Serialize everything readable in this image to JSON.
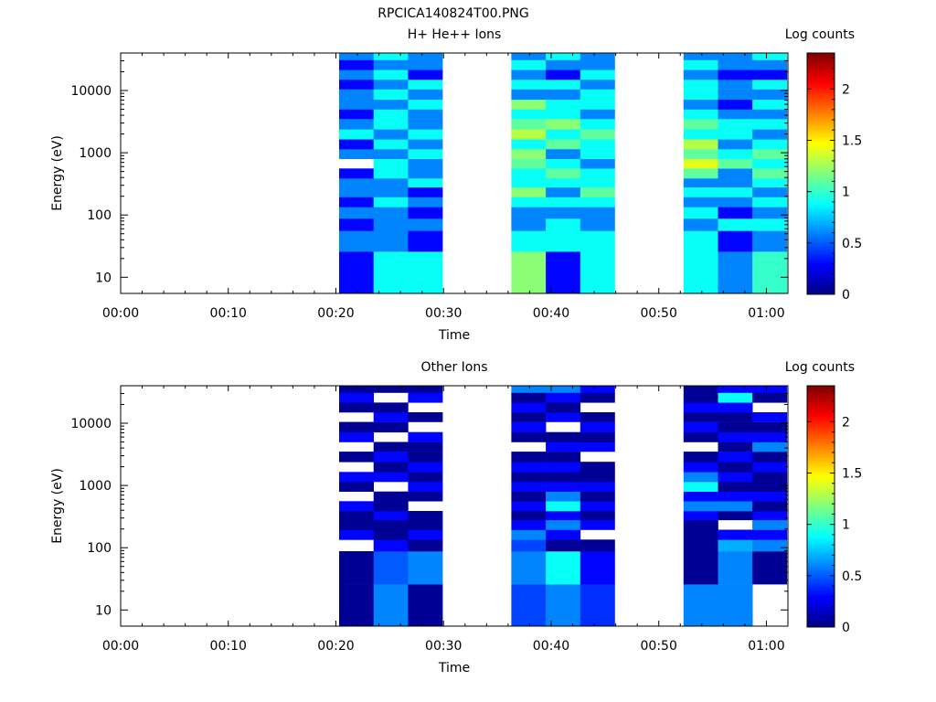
{
  "page_title": "RPCICA140824T00.PNG",
  "chart_data": [
    {
      "type": "heatmap",
      "title": "H+ He++ Ions",
      "xlabel": "Time",
      "ylabel": "Energy (eV)",
      "colorbar_label": "Log counts",
      "x_ticks": [
        "00:00",
        "00:10",
        "00:20",
        "00:30",
        "00:40",
        "00:50",
        "01:00"
      ],
      "x_range_minutes": [
        0,
        62
      ],
      "y_scale": "log",
      "y_range_eV": [
        5.5,
        40000
      ],
      "y_ticks": [
        "10",
        "100",
        "1000",
        "10000"
      ],
      "colorbar_ticks": [
        "0",
        "0.5",
        "1",
        "1.5",
        "2"
      ],
      "colorbar_range": [
        0,
        2.35
      ],
      "colormap": "jet",
      "time_bins_minutes": [
        [
          20.3,
          23.5
        ],
        [
          23.5,
          26.7
        ],
        [
          26.7,
          29.9
        ],
        [
          36.3,
          39.5
        ],
        [
          39.5,
          42.7
        ],
        [
          42.7,
          45.9
        ],
        [
          52.3,
          55.5
        ],
        [
          55.5,
          58.7
        ],
        [
          58.7,
          61.9
        ]
      ],
      "energy_bins_eV": [
        5.5,
        26,
        56,
        88,
        135,
        195,
        280,
        390,
        560,
        800,
        1150,
        1650,
        2400,
        3500,
        5000,
        7200,
        10500,
        15000,
        21500,
        31000,
        40000
      ],
      "log_counts": [
        [
          0.3,
          0.6,
          0.3,
          0.6,
          0.3,
          0.6,
          0.6,
          0.3,
          null,
          0.6,
          0.3,
          0.9,
          0.6,
          0.3,
          0.6,
          0.6,
          0.3,
          0.6,
          0.3,
          0.6
        ],
        [
          0.9,
          0.6,
          0.6,
          0.6,
          0.9,
          0.6,
          0.6,
          0.9,
          0.9,
          0.6,
          0.9,
          0.6,
          0.9,
          0.9,
          0.6,
          0.9,
          0.6,
          0.9,
          0.6,
          0.9
        ],
        [
          0.9,
          0.3,
          0.6,
          0.3,
          0.6,
          0.3,
          0.9,
          0.6,
          0.6,
          0.9,
          0.6,
          0.9,
          0.6,
          0.6,
          0.9,
          0.6,
          0.9,
          0.3,
          0.6,
          0.6
        ],
        [
          1.2,
          0.9,
          0.6,
          0.6,
          0.9,
          1.2,
          0.9,
          0.9,
          1.1,
          1.2,
          0.9,
          1.3,
          1.1,
          0.9,
          1.2,
          0.6,
          0.9,
          0.6,
          0.9,
          0.6
        ],
        [
          0.3,
          0.9,
          0.9,
          0.6,
          0.9,
          0.6,
          0.9,
          1.1,
          0.9,
          0.6,
          1.1,
          0.9,
          1.2,
          0.9,
          0.9,
          0.6,
          0.9,
          0.3,
          0.6,
          0.9
        ],
        [
          0.9,
          0.9,
          0.6,
          0.6,
          0.9,
          1.1,
          0.9,
          0.9,
          0.6,
          0.9,
          0.9,
          1.1,
          0.9,
          0.6,
          0.9,
          0.9,
          0.6,
          0.9,
          0.6,
          0.6
        ],
        [
          0.9,
          0.9,
          0.6,
          0.9,
          0.6,
          0.9,
          0.6,
          1.1,
          1.4,
          1.1,
          1.3,
          0.9,
          1.1,
          0.9,
          0.6,
          0.9,
          0.9,
          0.6,
          0.9,
          0.6
        ],
        [
          0.6,
          0.3,
          0.9,
          0.3,
          0.6,
          0.9,
          0.6,
          0.6,
          1.1,
          0.9,
          0.6,
          0.9,
          0.9,
          0.6,
          0.3,
          0.6,
          0.6,
          0.3,
          0.6,
          0.6
        ],
        [
          1.0,
          0.6,
          0.9,
          0.6,
          0.9,
          0.6,
          0.9,
          1.1,
          0.9,
          1.1,
          0.9,
          0.6,
          0.9,
          0.6,
          0.9,
          0.6,
          0.9,
          0.3,
          0.6,
          0.9
        ]
      ]
    },
    {
      "type": "heatmap",
      "title": "Other Ions",
      "xlabel": "Time",
      "ylabel": "Energy (eV)",
      "colorbar_label": "Log counts",
      "x_ticks": [
        "00:00",
        "00:10",
        "00:20",
        "00:30",
        "00:40",
        "00:50",
        "01:00"
      ],
      "x_range_minutes": [
        0,
        62
      ],
      "y_scale": "log",
      "y_range_eV": [
        5.5,
        40000
      ],
      "y_ticks": [
        "10",
        "100",
        "1000",
        "10000"
      ],
      "colorbar_ticks": [
        "0",
        "0.5",
        "1",
        "1.5",
        "2"
      ],
      "colorbar_range": [
        0,
        2.35
      ],
      "colormap": "jet",
      "time_bins_minutes": [
        [
          20.3,
          23.5
        ],
        [
          23.5,
          26.7
        ],
        [
          26.7,
          29.9
        ],
        [
          36.3,
          39.5
        ],
        [
          39.5,
          42.7
        ],
        [
          42.7,
          45.9
        ],
        [
          52.3,
          55.5
        ],
        [
          55.5,
          58.7
        ],
        [
          58.7,
          61.9
        ]
      ],
      "energy_bins_eV": [
        5.5,
        26,
        88,
        135,
        195,
        280,
        390,
        560,
        800,
        1150,
        1650,
        2400,
        3500,
        5000,
        7200,
        10500,
        15000,
        21500,
        31000,
        40000
      ],
      "log_counts": [
        [
          0.05,
          0.05,
          null,
          0.3,
          0.05,
          0.05,
          0.3,
          null,
          0.05,
          0.3,
          null,
          0.05,
          null,
          0.3,
          0.05,
          null,
          0.05,
          0.3,
          0.05
        ],
        [
          0.6,
          0.5,
          0.3,
          0.05,
          0.05,
          0.3,
          0.05,
          0.05,
          null,
          0.3,
          0.05,
          0.3,
          0.05,
          null,
          0.05,
          0.3,
          0.05,
          null,
          0.05
        ],
        [
          0.05,
          0.6,
          0.05,
          0.3,
          0.05,
          0.05,
          null,
          0.05,
          0.3,
          0.05,
          0.3,
          0.05,
          0.05,
          0.3,
          null,
          0.05,
          null,
          0.3,
          0.05
        ],
        [
          0.45,
          0.6,
          0.45,
          0.6,
          0.3,
          0.05,
          0.3,
          0.05,
          0.3,
          0.05,
          0.3,
          0.05,
          null,
          0.05,
          0.3,
          0.05,
          0.3,
          0.05,
          0.6
        ],
        [
          0.6,
          0.9,
          0.05,
          0.3,
          0.6,
          0.3,
          0.9,
          0.6,
          0.3,
          0.05,
          0.3,
          0.05,
          0.3,
          0.05,
          null,
          0.3,
          0.05,
          0.3,
          0.6
        ],
        [
          0.4,
          0.3,
          0.05,
          null,
          0.3,
          0.05,
          0.3,
          0.05,
          0.3,
          0.05,
          0.05,
          null,
          0.3,
          0.05,
          0.3,
          0.05,
          null,
          0.05,
          0.3
        ],
        [
          0.6,
          0.05,
          0.05,
          0.05,
          0.05,
          0.3,
          0.6,
          0.3,
          0.9,
          0.6,
          0.3,
          0.05,
          null,
          0.05,
          0.3,
          0.05,
          0.3,
          0.05,
          0.05
        ],
        [
          0.6,
          0.6,
          0.7,
          0.3,
          null,
          0.05,
          0.6,
          0.3,
          0.05,
          0.3,
          0.05,
          0.3,
          0.05,
          0.3,
          0.05,
          0.05,
          0.3,
          0.9,
          0.3
        ],
        [
          null,
          0.05,
          0.6,
          0.3,
          0.6,
          0.3,
          0.05,
          0.3,
          0.05,
          0.05,
          0.3,
          0.05,
          0.6,
          0.3,
          0.05,
          0.3,
          null,
          0.05,
          0.3
        ]
      ]
    }
  ]
}
